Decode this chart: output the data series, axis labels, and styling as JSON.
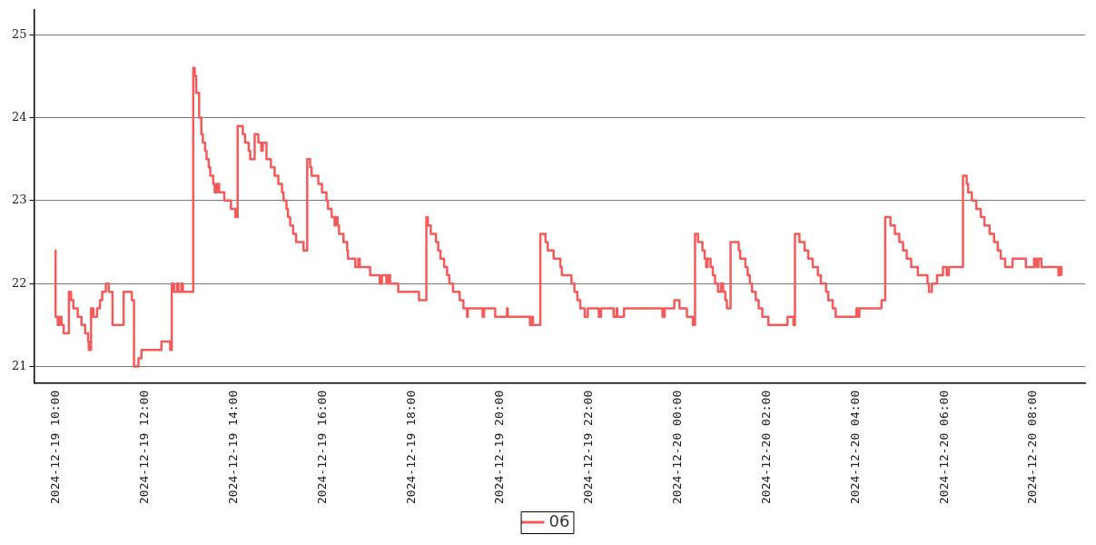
{
  "chart_data": {
    "type": "step",
    "legend": "bottom",
    "grid": "y",
    "line_style": "solid",
    "marker": "none",
    "xlim": [
      "2024-12-19T09:30",
      "2024-12-20T09:10"
    ],
    "xticks": [
      {
        "value": "2024-12-19T10:00",
        "label": "2024-12-19 10:00"
      },
      {
        "value": "2024-12-19T12:00",
        "label": "2024-12-19 12:00"
      },
      {
        "value": "2024-12-19T14:00",
        "label": "2024-12-19 14:00"
      },
      {
        "value": "2024-12-19T16:00",
        "label": "2024-12-19 16:00"
      },
      {
        "value": "2024-12-19T18:00",
        "label": "2024-12-19 18:00"
      },
      {
        "value": "2024-12-19T20:00",
        "label": "2024-12-19 20:00"
      },
      {
        "value": "2024-12-19T22:00",
        "label": "2024-12-19 22:00"
      },
      {
        "value": "2024-12-20T00:00",
        "label": "2024-12-20 00:00"
      },
      {
        "value": "2024-12-20T02:00",
        "label": "2024-12-20 02:00"
      },
      {
        "value": "2024-12-20T04:00",
        "label": "2024-12-20 04:00"
      },
      {
        "value": "2024-12-20T06:00",
        "label": "2024-12-20 06:00"
      },
      {
        "value": "2024-12-20T08:00",
        "label": "2024-12-20 08:00"
      }
    ],
    "ylim": [
      20.8,
      25.3
    ],
    "yticks": [
      21,
      22,
      23,
      24,
      25
    ],
    "x": [
      "2024-12-19T09:58",
      "2024-12-19T09:59",
      "2024-12-19T10:02",
      "2024-12-19T10:04",
      "2024-12-19T10:07",
      "2024-12-19T10:10",
      "2024-12-19T10:17",
      "2024-12-19T10:20",
      "2024-12-19T10:23",
      "2024-12-19T10:29",
      "2024-12-19T10:34",
      "2024-12-19T10:39",
      "2024-12-19T10:43",
      "2024-12-19T10:44",
      "2024-12-19T10:47",
      "2024-12-19T10:50",
      "2024-12-19T10:55",
      "2024-12-19T10:59",
      "2024-12-19T11:02",
      "2024-12-19T11:07",
      "2024-12-19T11:11",
      "2024-12-19T11:16",
      "2024-12-19T11:31",
      "2024-12-19T11:42",
      "2024-12-19T11:45",
      "2024-12-19T11:51",
      "2024-12-19T11:55",
      "2024-12-19T12:22",
      "2024-12-19T12:34",
      "2024-12-19T12:36",
      "2024-12-19T12:39",
      "2024-12-19T12:43",
      "2024-12-19T12:45",
      "2024-12-19T12:49",
      "2024-12-19T12:51",
      "2024-12-19T13:05",
      "2024-12-19T13:07",
      "2024-12-19T13:09",
      "2024-12-19T13:13",
      "2024-12-19T13:16",
      "2024-12-19T13:18",
      "2024-12-19T13:21",
      "2024-12-19T13:23",
      "2024-12-19T13:26",
      "2024-12-19T13:28",
      "2024-12-19T13:32",
      "2024-12-19T13:34",
      "2024-12-19T13:37",
      "2024-12-19T13:40",
      "2024-12-19T13:47",
      "2024-12-19T13:56",
      "2024-12-19T14:02",
      "2024-12-19T14:05",
      "2024-12-19T14:12",
      "2024-12-19T14:15",
      "2024-12-19T14:20",
      "2024-12-19T14:22",
      "2024-12-19T14:28",
      "2024-12-19T14:33",
      "2024-12-19T14:37",
      "2024-12-19T14:39",
      "2024-12-19T14:44",
      "2024-12-19T14:50",
      "2024-12-19T14:55",
      "2024-12-19T15:00",
      "2024-12-19T15:05",
      "2024-12-19T15:07",
      "2024-12-19T15:11",
      "2024-12-19T15:13",
      "2024-12-19T15:16",
      "2024-12-19T15:20",
      "2024-12-19T15:24",
      "2024-12-19T15:34",
      "2024-12-19T15:39",
      "2024-12-19T15:43",
      "2024-12-19T15:45",
      "2024-12-19T15:54",
      "2024-12-19T15:59",
      "2024-12-19T16:05",
      "2024-12-19T16:07",
      "2024-12-19T16:12",
      "2024-12-19T16:16",
      "2024-12-19T16:17",
      "2024-12-19T16:20",
      "2024-12-19T16:22",
      "2024-12-19T16:28",
      "2024-12-19T16:33",
      "2024-12-19T16:34",
      "2024-12-19T16:44",
      "2024-12-19T16:48",
      "2024-12-19T16:50",
      "2024-12-19T17:04",
      "2024-12-19T17:17",
      "2024-12-19T17:20",
      "2024-12-19T17:26",
      "2024-12-19T17:28",
      "2024-12-19T17:31",
      "2024-12-19T17:42",
      "2024-12-19T18:10",
      "2024-12-19T18:20",
      "2024-12-19T18:22",
      "2024-12-19T18:26",
      "2024-12-19T18:33",
      "2024-12-19T18:36",
      "2024-12-19T18:39",
      "2024-12-19T18:44",
      "2024-12-19T18:48",
      "2024-12-19T18:51",
      "2024-12-19T18:56",
      "2024-12-19T19:05",
      "2024-12-19T19:10",
      "2024-12-19T19:15",
      "2024-12-19T19:16",
      "2024-12-19T19:36",
      "2024-12-19T19:38",
      "2024-12-19T19:53",
      "2024-12-19T20:09",
      "2024-12-19T20:10",
      "2024-12-19T20:40",
      "2024-12-19T20:42",
      "2024-12-19T20:44",
      "2024-12-19T20:54",
      "2024-12-19T21:01",
      "2024-12-19T21:04",
      "2024-12-19T21:12",
      "2024-12-19T21:21",
      "2024-12-19T21:23",
      "2024-12-19T21:36",
      "2024-12-19T21:40",
      "2024-12-19T21:44",
      "2024-12-19T21:48",
      "2024-12-19T21:54",
      "2024-12-19T21:58",
      "2024-12-19T22:13",
      "2024-12-19T22:16",
      "2024-12-19T22:33",
      "2024-12-19T22:37",
      "2024-12-19T22:38",
      "2024-12-19T22:47",
      "2024-12-19T23:39",
      "2024-12-19T23:42",
      "2024-12-19T23:55",
      "2024-12-20T00:02",
      "2024-12-20T00:12",
      "2024-12-20T00:20",
      "2024-12-20T00:23",
      "2024-12-20T00:27",
      "2024-12-20T00:33",
      "2024-12-20T00:36",
      "2024-12-20T00:38",
      "2024-12-20T00:40",
      "2024-12-20T00:44",
      "2024-12-20T00:47",
      "2024-12-20T00:50",
      "2024-12-20T00:54",
      "2024-12-20T00:58",
      "2024-12-20T01:01",
      "2024-12-20T01:04",
      "2024-12-20T01:06",
      "2024-12-20T01:11",
      "2024-12-20T01:22",
      "2024-12-20T01:24",
      "2024-12-20T01:31",
      "2024-12-20T01:34",
      "2024-12-20T01:37",
      "2024-12-20T01:40",
      "2024-12-20T01:45",
      "2024-12-20T01:49",
      "2024-12-20T01:54",
      "2024-12-20T02:02",
      "2024-12-20T02:28",
      "2024-12-20T02:36",
      "2024-12-20T02:38",
      "2024-12-20T02:44",
      "2024-12-20T02:51",
      "2024-12-20T02:56",
      "2024-12-20T03:02",
      "2024-12-20T03:09",
      "2024-12-20T03:13",
      "2024-12-20T03:20",
      "2024-12-20T03:23",
      "2024-12-20T03:29",
      "2024-12-20T03:33",
      "2024-12-20T04:01",
      "2024-12-20T04:04",
      "2024-12-20T04:05",
      "2024-12-20T04:35",
      "2024-12-20T04:40",
      "2024-12-20T04:47",
      "2024-12-20T04:53",
      "2024-12-20T04:59",
      "2024-12-20T05:04",
      "2024-12-20T05:09",
      "2024-12-20T05:15",
      "2024-12-20T05:24",
      "2024-12-20T05:37",
      "2024-12-20T05:39",
      "2024-12-20T05:43",
      "2024-12-20T05:50",
      "2024-12-20T05:58",
      "2024-12-20T06:03",
      "2024-12-20T06:06",
      "2024-12-20T06:25",
      "2024-12-20T06:30",
      "2024-12-20T06:32",
      "2024-12-20T06:37",
      "2024-12-20T06:43",
      "2024-12-20T06:49",
      "2024-12-20T06:54",
      "2024-12-20T07:01",
      "2024-12-20T07:07",
      "2024-12-20T07:12",
      "2024-12-20T07:16",
      "2024-12-20T07:22",
      "2024-12-20T07:32",
      "2024-12-20T07:50",
      "2024-12-20T08:01",
      "2024-12-20T08:04",
      "2024-12-20T08:07",
      "2024-12-20T08:11",
      "2024-12-20T08:34",
      "2024-12-20T08:37",
      "2024-12-20T08:38"
    ],
    "series": [
      {
        "name": "06",
        "color": "#f55a5a",
        "values": [
          22.4,
          21.6,
          21.5,
          21.6,
          21.5,
          21.4,
          21.9,
          21.8,
          21.7,
          21.6,
          21.5,
          21.4,
          21.3,
          21.2,
          21.7,
          21.6,
          21.7,
          21.8,
          21.9,
          22.0,
          21.9,
          21.5,
          21.9,
          21.8,
          21.0,
          21.1,
          21.2,
          21.3,
          21.2,
          22.0,
          21.9,
          22.0,
          21.9,
          22.0,
          21.9,
          24.6,
          24.5,
          24.3,
          24.0,
          23.8,
          23.7,
          23.6,
          23.5,
          23.4,
          23.3,
          23.2,
          23.1,
          23.2,
          23.1,
          23.0,
          22.9,
          22.8,
          23.9,
          23.8,
          23.7,
          23.6,
          23.5,
          23.8,
          23.7,
          23.6,
          23.7,
          23.5,
          23.4,
          23.3,
          23.2,
          23.1,
          23.0,
          22.9,
          22.8,
          22.7,
          22.6,
          22.5,
          22.4,
          23.5,
          23.4,
          23.3,
          23.2,
          23.1,
          23.0,
          22.9,
          22.8,
          22.7,
          22.8,
          22.7,
          22.6,
          22.5,
          22.4,
          22.3,
          22.2,
          22.3,
          22.2,
          22.1,
          22.0,
          22.1,
          22.0,
          22.1,
          22.0,
          21.9,
          21.8,
          22.8,
          22.7,
          22.6,
          22.5,
          22.4,
          22.3,
          22.2,
          22.1,
          22.0,
          21.9,
          21.8,
          21.7,
          21.6,
          21.7,
          21.6,
          21.7,
          21.6,
          21.7,
          21.6,
          21.5,
          21.6,
          21.5,
          22.6,
          22.5,
          22.4,
          22.3,
          22.2,
          22.1,
          22.0,
          21.9,
          21.8,
          21.7,
          21.6,
          21.7,
          21.6,
          21.7,
          21.6,
          21.7,
          21.6,
          21.7,
          21.6,
          21.7,
          21.8,
          21.7,
          21.6,
          21.5,
          22.6,
          22.5,
          22.4,
          22.3,
          22.2,
          22.3,
          22.2,
          22.1,
          22.0,
          21.9,
          22.0,
          21.9,
          21.8,
          21.7,
          22.5,
          22.4,
          22.3,
          22.2,
          22.1,
          22.0,
          21.9,
          21.8,
          21.7,
          21.6,
          21.5,
          21.6,
          21.5,
          22.6,
          22.5,
          22.4,
          22.3,
          22.2,
          22.1,
          22.0,
          21.9,
          21.8,
          21.7,
          21.6,
          21.7,
          21.6,
          21.7,
          21.8,
          22.8,
          22.7,
          22.6,
          22.5,
          22.4,
          22.3,
          22.2,
          22.1,
          22.0,
          21.9,
          22.0,
          22.1,
          22.2,
          22.1,
          22.2,
          23.3,
          23.2,
          23.1,
          23.0,
          22.9,
          22.8,
          22.7,
          22.6,
          22.5,
          22.4,
          22.3,
          22.2,
          22.3,
          22.2,
          22.3,
          22.2,
          22.3,
          22.2,
          22.1,
          22.2,
          22.1
        ]
      }
    ]
  }
}
